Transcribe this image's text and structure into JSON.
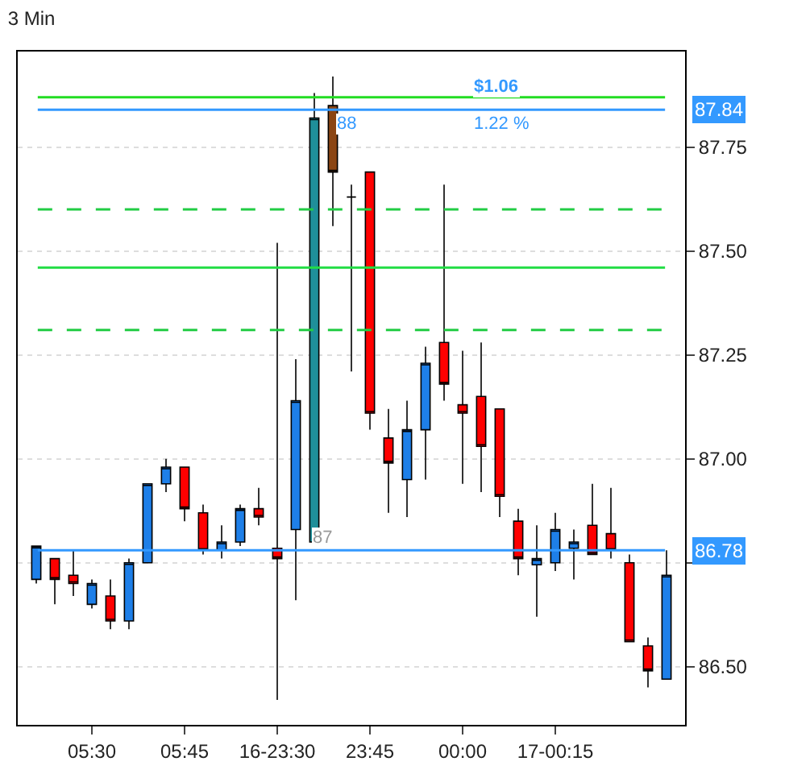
{
  "chart_data": {
    "type": "candlestick",
    "title": "3 Min",
    "categories": [
      null,
      null,
      null,
      "05:30",
      null,
      null,
      null,
      null,
      "05:45",
      null,
      null,
      null,
      null,
      "16-23:30",
      null,
      null,
      null,
      null,
      "23:45",
      null,
      null,
      null,
      null,
      "00:00",
      null,
      null,
      null,
      null,
      "17-00:15",
      null,
      null,
      null,
      null,
      null,
      null
    ],
    "ohlc": [
      [
        86.71,
        86.79,
        86.7,
        86.79
      ],
      [
        86.76,
        86.76,
        86.65,
        86.71
      ],
      [
        86.72,
        86.78,
        86.67,
        86.7
      ],
      [
        86.65,
        86.71,
        86.64,
        86.7
      ],
      [
        86.67,
        86.71,
        86.59,
        86.61
      ],
      [
        86.61,
        86.76,
        86.59,
        86.75
      ],
      [
        86.75,
        86.94,
        86.75,
        86.94
      ],
      [
        86.94,
        87.0,
        86.92,
        86.98
      ],
      [
        86.98,
        86.98,
        86.85,
        86.88
      ],
      [
        86.87,
        86.89,
        86.77,
        86.78
      ],
      [
        86.78,
        86.84,
        86.76,
        86.8
      ],
      [
        86.8,
        86.89,
        86.79,
        86.88
      ],
      [
        86.88,
        86.93,
        86.84,
        86.86
      ],
      [
        86.785,
        87.52,
        86.42,
        86.76
      ],
      [
        86.83,
        87.24,
        86.66,
        87.14
      ],
      [
        86.8,
        87.88,
        86.8,
        87.82
      ],
      [
        87.85,
        87.92,
        87.56,
        87.69
      ],
      [
        87.63,
        87.66,
        87.21,
        87.63
      ],
      [
        87.69,
        87.69,
        87.07,
        87.11
      ],
      [
        87.05,
        87.12,
        86.87,
        86.99
      ],
      [
        86.95,
        87.14,
        86.86,
        87.07
      ],
      [
        87.07,
        87.27,
        86.95,
        87.23
      ],
      [
        87.28,
        87.66,
        87.14,
        87.18
      ],
      [
        87.13,
        87.26,
        86.94,
        87.11
      ],
      [
        87.15,
        87.28,
        86.92,
        87.03
      ],
      [
        87.12,
        87.12,
        86.86,
        86.91
      ],
      [
        86.85,
        86.88,
        86.72,
        86.76
      ],
      [
        86.745,
        86.84,
        86.62,
        86.76
      ],
      [
        86.75,
        86.87,
        86.73,
        86.83
      ],
      [
        86.785,
        86.83,
        86.71,
        86.8
      ],
      [
        86.84,
        86.94,
        86.77,
        86.77
      ],
      [
        86.82,
        86.93,
        86.76,
        86.78
      ],
      [
        86.75,
        86.77,
        86.56,
        86.56
      ],
      [
        86.55,
        86.57,
        86.45,
        86.49
      ],
      [
        86.47,
        86.78,
        86.47,
        86.72
      ]
    ],
    "colors": [
      "#1e7fe8",
      "#ff0000",
      "#ff0000",
      "#1e7fe8",
      "#ff0000",
      "#1e7fe8",
      "#1e7fe8",
      "#1e7fe8",
      "#ff0000",
      "#ff0000",
      "#1e7fe8",
      "#1e7fe8",
      "#ff0000",
      "#ff0000",
      "#1e7fe8",
      "#1f8f9a",
      "#8b4513",
      "#000000",
      "#ff0000",
      "#ff0000",
      "#1e7fe8",
      "#1e7fe8",
      "#ff0000",
      "#ff0000",
      "#ff0000",
      "#ff0000",
      "#ff0000",
      "#1e7fe8",
      "#1e7fe8",
      "#1e7fe8",
      "#ff0000",
      "#ff0000",
      "#ff0000",
      "#ff0000",
      "#1e7fe8"
    ],
    "ylim": [
      86.36,
      87.98
    ],
    "yticks": [
      {
        "value": 86.5,
        "label": "86.50"
      },
      {
        "value": 86.75,
        "label": null
      },
      {
        "value": 87.0,
        "label": "87.00"
      },
      {
        "value": 87.25,
        "label": "87.25"
      },
      {
        "value": 87.5,
        "label": "87.50"
      },
      {
        "value": 87.75,
        "label": "87.75"
      }
    ],
    "ref_lines": [
      {
        "axis": "y",
        "value": 87.87,
        "label": null,
        "color": "#22dd22",
        "line_style": "solid"
      },
      {
        "axis": "y",
        "value": 87.6,
        "label": null,
        "color": "#22cc44",
        "line_style": "dashed"
      },
      {
        "axis": "y",
        "value": 87.46,
        "label": null,
        "color": "#22dd44",
        "line_style": "solid"
      },
      {
        "axis": "y",
        "value": 87.31,
        "label": null,
        "color": "#22cc44",
        "line_style": "dashed"
      },
      {
        "axis": "y",
        "value": 87.84,
        "label": "87.84",
        "color": "#3399ff",
        "line_style": "solid"
      },
      {
        "axis": "y",
        "value": 86.78,
        "label": "86.78",
        "color": "#3399ff",
        "line_style": "solid"
      }
    ],
    "annotations": [
      "$1.06",
      "1.22 %",
      "88",
      "87"
    ],
    "grid": "y"
  }
}
